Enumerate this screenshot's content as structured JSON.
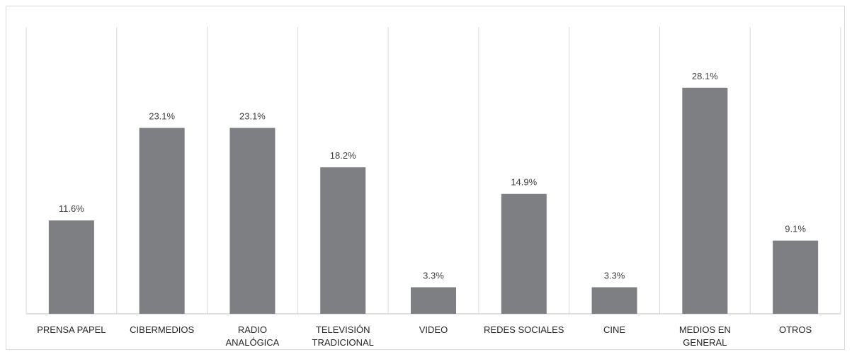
{
  "chart_data": {
    "type": "bar",
    "categories": [
      [
        "PRENSA PAPEL"
      ],
      [
        "CIBERMEDIOS"
      ],
      [
        "RADIO",
        "ANALÓGICA"
      ],
      [
        "TELEVISIÓN",
        "TRADICIONAL"
      ],
      [
        "VIDEO"
      ],
      [
        "REDES SOCIALES"
      ],
      [
        "CINE"
      ],
      [
        "MEDIOS EN",
        "GENERAL"
      ],
      [
        "OTROS"
      ]
    ],
    "values": [
      11.6,
      23.1,
      23.1,
      18.2,
      3.3,
      14.9,
      3.3,
      28.1,
      9.1
    ],
    "data_labels": [
      "11.6%",
      "23.1%",
      "23.1%",
      "18.2%",
      "3.3%",
      "14.9%",
      "3.3%",
      "28.1%",
      "9.1%"
    ],
    "title": "",
    "xlabel": "",
    "ylabel": "",
    "ylim": [
      0,
      30
    ],
    "grid": "vertical category separators",
    "legend": "none",
    "colors": {
      "bar": "#7e7f83",
      "grid": "#d9d9d9",
      "axis": "#bfbfbf",
      "text": "#262626"
    }
  }
}
